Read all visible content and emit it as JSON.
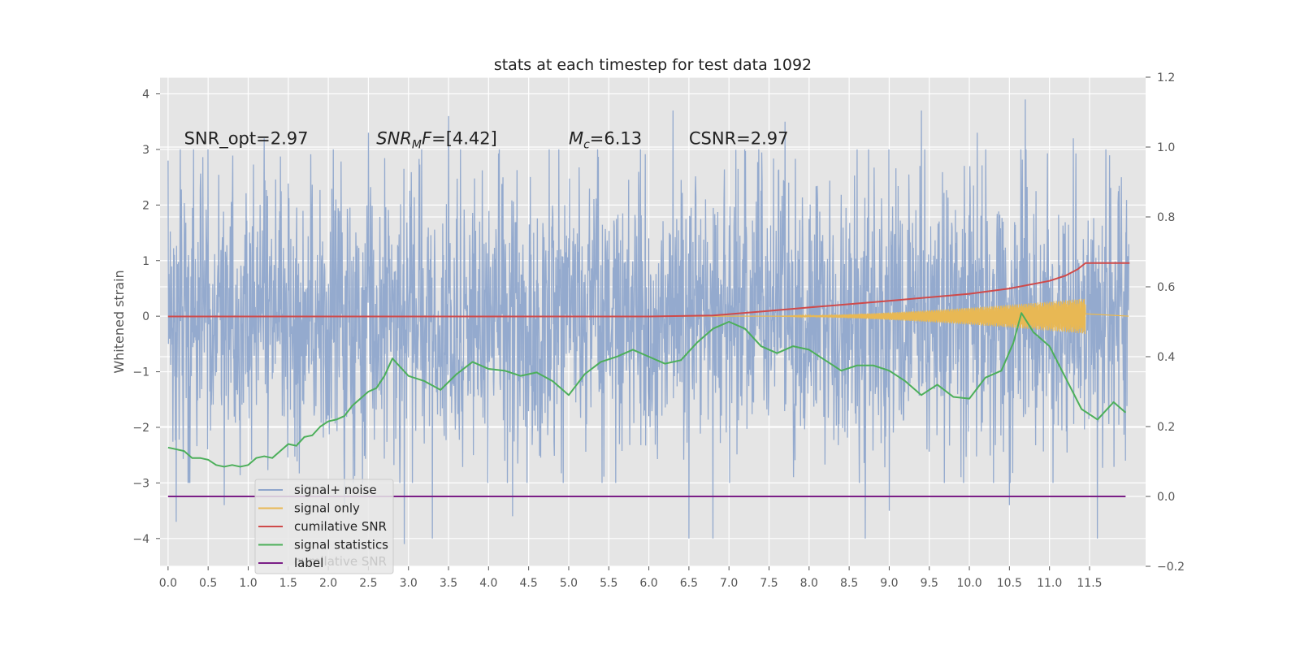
{
  "chart_data": {
    "type": "line",
    "title": "stats at each timestep for test data 1092",
    "ylabel": "Whitened strain",
    "xlabel": "",
    "xlim": [
      -0.1,
      12.2
    ],
    "ylim": [
      -4.5,
      4.3
    ],
    "y2lim": [
      -0.2,
      1.2
    ],
    "grid": true,
    "legend_position": "lower-left",
    "x_ticks": [
      "0.0",
      "0.5",
      "1.0",
      "1.5",
      "2.0",
      "2.5",
      "3.0",
      "3.5",
      "4.0",
      "4.5",
      "5.0",
      "5.5",
      "6.0",
      "6.5",
      "7.0",
      "7.5",
      "8.0",
      "8.5",
      "9.0",
      "9.5",
      "10.0",
      "10.5",
      "11.0",
      "11.5"
    ],
    "y_ticks": [
      "4",
      "3",
      "2",
      "1",
      "0",
      "−1",
      "−2",
      "−3",
      "−4"
    ],
    "y2_ticks": [
      "1.2",
      "1.0",
      "0.8",
      "0.6",
      "0.4",
      "0.2",
      "0.0",
      "−0.2"
    ],
    "annotations": [
      {
        "prefix": "SNR_opt=2.97",
        "base": "",
        "sub": "",
        "suffix": ""
      },
      {
        "prefix": "",
        "base": "SNR",
        "sub": "M",
        "italic_tail": "F",
        "suffix": "=[4.42]"
      },
      {
        "prefix": "",
        "base": "M",
        "sub": "c",
        "italic_tail": "",
        "suffix": "=6.13"
      },
      {
        "prefix": "CSNR=2.97",
        "base": "",
        "sub": "",
        "suffix": ""
      }
    ],
    "annotation_x": [
      0.2,
      2.6,
      5.0,
      6.5
    ],
    "annotation_y": 3.2,
    "colors": {
      "noise": "#8fa6cc",
      "signal": "#e8b854",
      "cumulative": "#cf4a4a",
      "statistics": "#4caf5a",
      "label": "#7b1f87",
      "background": "#e5e5e5"
    },
    "series": [
      {
        "name": "signal+ noise",
        "axis": "left",
        "style": "noise",
        "x_range": [
          0.0,
          11.99
        ],
        "amplitude": 1.2,
        "positive_peaks": [
          [
            0.0,
            2.8
          ],
          [
            0.1,
            3.1
          ],
          [
            0.5,
            3.0
          ],
          [
            1.2,
            3.2
          ],
          [
            2.5,
            3.3
          ],
          [
            3.5,
            3.6
          ],
          [
            4.3,
            3.6
          ],
          [
            6.3,
            3.7
          ],
          [
            7.7,
            3.5
          ],
          [
            9.4,
            3.7
          ],
          [
            10.1,
            3.3
          ],
          [
            10.7,
            3.9
          ],
          [
            11.3,
            3.2
          ],
          [
            11.9,
            2.5
          ]
        ],
        "negative_peaks": [
          [
            0.1,
            -3.7
          ],
          [
            0.7,
            -3.4
          ],
          [
            2.2,
            -3.4
          ],
          [
            2.95,
            -4.1
          ],
          [
            3.3,
            -4.0
          ],
          [
            4.3,
            -3.6
          ],
          [
            6.5,
            -4.0
          ],
          [
            6.8,
            -4.0
          ],
          [
            8.7,
            -4.0
          ],
          [
            9.0,
            -3.5
          ],
          [
            10.5,
            -3.4
          ],
          [
            11.6,
            -4.0
          ],
          [
            11.95,
            -2.6
          ]
        ]
      },
      {
        "name": "signal only",
        "axis": "left",
        "style": "chirp",
        "x_start": 7.5,
        "x_end": 11.45,
        "amplitude_end": 0.32
      },
      {
        "name": "cumilative SNR",
        "axis": "right",
        "x": [
          0.0,
          6.0,
          6.8,
          7.5,
          8.0,
          9.0,
          10.0,
          10.5,
          11.0,
          11.2,
          11.35,
          11.45,
          12.0
        ],
        "values": [
          0.515,
          0.515,
          0.518,
          0.531,
          0.541,
          0.56,
          0.58,
          0.595,
          0.617,
          0.632,
          0.65,
          0.668,
          0.668
        ]
      },
      {
        "name": "signal statistics",
        "axis": "right",
        "x": [
          0.0,
          0.1,
          0.2,
          0.3,
          0.4,
          0.5,
          0.6,
          0.7,
          0.8,
          0.9,
          1.0,
          1.1,
          1.2,
          1.3,
          1.4,
          1.5,
          1.6,
          1.7,
          1.8,
          1.9,
          2.0,
          2.1,
          2.2,
          2.3,
          2.4,
          2.5,
          2.6,
          2.7,
          2.8,
          2.9,
          3.0,
          3.2,
          3.4,
          3.6,
          3.8,
          4.0,
          4.2,
          4.4,
          4.6,
          4.8,
          5.0,
          5.2,
          5.4,
          5.6,
          5.8,
          6.0,
          6.2,
          6.4,
          6.6,
          6.8,
          7.0,
          7.2,
          7.4,
          7.6,
          7.8,
          8.0,
          8.2,
          8.4,
          8.6,
          8.8,
          9.0,
          9.2,
          9.4,
          9.6,
          9.8,
          10.0,
          10.2,
          10.4,
          10.55,
          10.65,
          10.8,
          11.0,
          11.2,
          11.4,
          11.6,
          11.8,
          11.95
        ],
        "values": [
          0.14,
          0.135,
          0.13,
          0.11,
          0.11,
          0.105,
          0.09,
          0.085,
          0.09,
          0.085,
          0.09,
          0.11,
          0.115,
          0.11,
          0.13,
          0.15,
          0.145,
          0.17,
          0.175,
          0.2,
          0.215,
          0.22,
          0.23,
          0.26,
          0.28,
          0.3,
          0.31,
          0.345,
          0.395,
          0.37,
          0.345,
          0.33,
          0.305,
          0.35,
          0.385,
          0.365,
          0.36,
          0.345,
          0.355,
          0.33,
          0.29,
          0.35,
          0.385,
          0.4,
          0.42,
          0.4,
          0.38,
          0.39,
          0.44,
          0.48,
          0.5,
          0.48,
          0.43,
          0.41,
          0.43,
          0.42,
          0.39,
          0.36,
          0.375,
          0.375,
          0.36,
          0.33,
          0.29,
          0.32,
          0.285,
          0.28,
          0.34,
          0.36,
          0.44,
          0.525,
          0.47,
          0.43,
          0.34,
          0.25,
          0.22,
          0.27,
          0.24
        ]
      },
      {
        "name": "label",
        "axis": "right",
        "x": [
          0.0,
          11.95
        ],
        "values": [
          0.0,
          0.0
        ]
      }
    ],
    "legend_ghost_text": "cumilative SNR"
  }
}
